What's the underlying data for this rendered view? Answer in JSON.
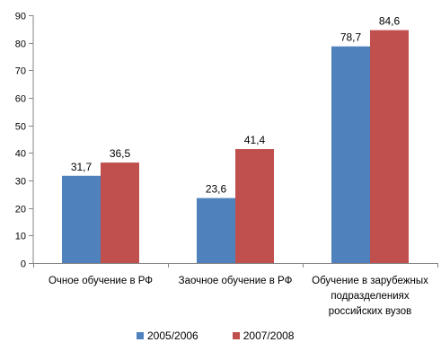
{
  "chart_data": {
    "type": "bar",
    "categories": [
      "Очное обучение в РФ",
      "Заочное обучение в РФ",
      "Обучение в зарубежных подразделениях российских вузов"
    ],
    "category_lines": [
      [
        "Очное обучение в РФ"
      ],
      [
        "Заочное обучение в РФ"
      ],
      [
        "Обучение в зарубежных",
        "подразделениях",
        "российских вузов"
      ]
    ],
    "series": [
      {
        "name": "2005/2006",
        "values": [
          31.7,
          23.6,
          78.7
        ],
        "labels": [
          "31,7",
          "23,6",
          "78,7"
        ],
        "color": "#4F81BD"
      },
      {
        "name": "2007/2008",
        "values": [
          36.5,
          41.4,
          84.6
        ],
        "labels": [
          "36,5",
          "41,4",
          "84,6"
        ],
        "color": "#C0504D"
      }
    ],
    "ylim": [
      0,
      90
    ],
    "yticks": [
      0,
      10,
      20,
      30,
      40,
      50,
      60,
      70,
      80,
      90
    ],
    "xlabel": "",
    "ylabel": "",
    "title": "",
    "grid": false,
    "legend": "bottom"
  }
}
